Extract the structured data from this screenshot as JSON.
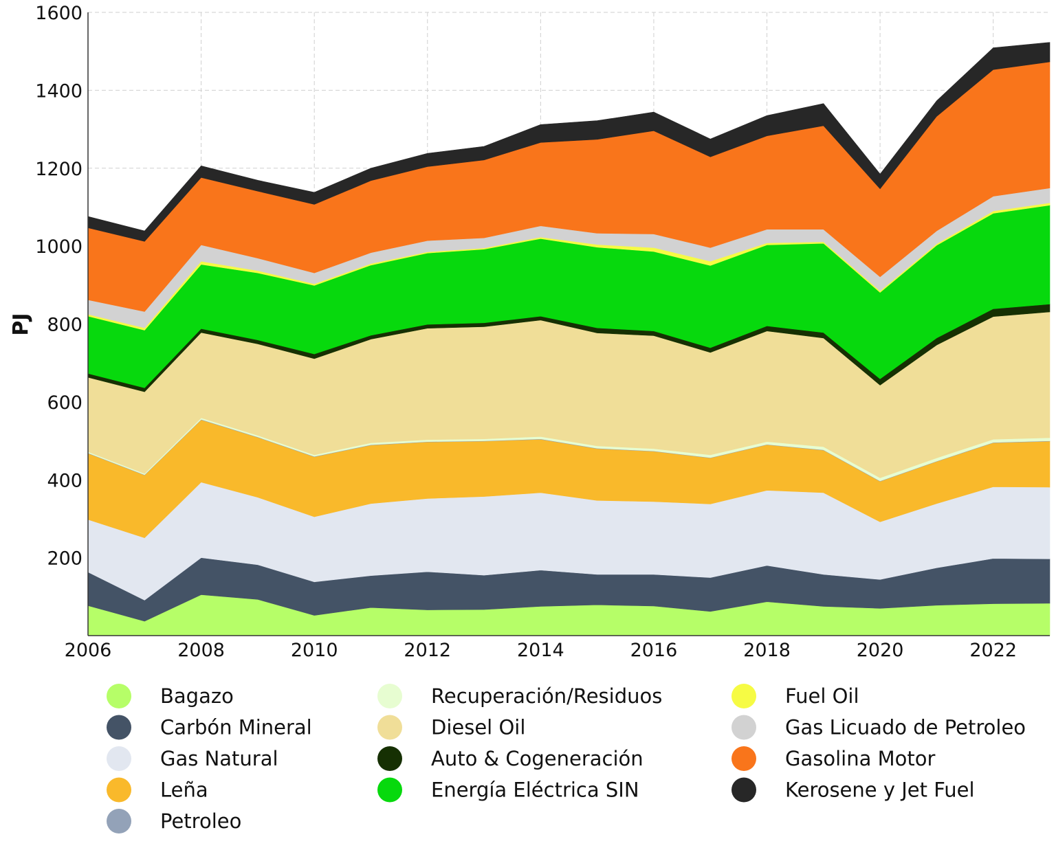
{
  "chart_data": {
    "type": "area",
    "stacked": true,
    "title": "",
    "xlabel": "",
    "ylabel": "PJ",
    "xlim": [
      2006,
      2023
    ],
    "ylim": [
      0,
      1600
    ],
    "x_ticks": [
      2006,
      2008,
      2010,
      2012,
      2014,
      2016,
      2018,
      2020,
      2022
    ],
    "y_ticks": [
      200,
      400,
      600,
      800,
      1000,
      1200,
      1400,
      1600
    ],
    "grid": true,
    "legend_position": "bottom",
    "x": [
      2006,
      2007,
      2008,
      2009,
      2010,
      2011,
      2012,
      2013,
      2014,
      2015,
      2016,
      2017,
      2018,
      2019,
      2020,
      2021,
      2022,
      2023
    ],
    "series": [
      {
        "name": "Bagazo",
        "color": "#b6fe68",
        "values": [
          77,
          37,
          105,
          93,
          52,
          72,
          66,
          67,
          75,
          79,
          76,
          62,
          87,
          75,
          70,
          78,
          82,
          83
        ]
      },
      {
        "name": "Carbón Mineral",
        "color": "#445366",
        "values": [
          86,
          54,
          95,
          89,
          86,
          82,
          98,
          88,
          93,
          78,
          81,
          87,
          93,
          82,
          74,
          96,
          116,
          114
        ]
      },
      {
        "name": "Gas Natural",
        "color": "#e2e7f0",
        "values": [
          135,
          160,
          194,
          173,
          167,
          185,
          188,
          202,
          199,
          190,
          187,
          189,
          193,
          210,
          148,
          165,
          184,
          184
        ]
      },
      {
        "name": "Leña",
        "color": "#f9b92b",
        "values": [
          170,
          161,
          160,
          154,
          154,
          150,
          145,
          142,
          137,
          133,
          129,
          118,
          117,
          109,
          104,
          108,
          113,
          118
        ]
      },
      {
        "name": "Petroleo",
        "color": "#93a2b8",
        "values": [
          1,
          1,
          1,
          1,
          1,
          1,
          1,
          1,
          1,
          1,
          1,
          1,
          1,
          1,
          1,
          1,
          1,
          1
        ]
      },
      {
        "name": "Recuperación/Residuos",
        "color": "#e7fdd1",
        "values": [
          3,
          3,
          4,
          4,
          4,
          5,
          5,
          5,
          6,
          6,
          6,
          7,
          7,
          8,
          8,
          8,
          8,
          8
        ]
      },
      {
        "name": "Diesel Oil",
        "color": "#f0de98",
        "values": [
          191,
          210,
          219,
          235,
          247,
          266,
          286,
          288,
          299,
          290,
          290,
          263,
          284,
          279,
          238,
          290,
          315,
          323
        ]
      },
      {
        "name": "Auto & Cogeneración",
        "color": "#163003",
        "values": [
          10,
          10,
          10,
          10,
          12,
          10,
          10,
          10,
          10,
          13,
          12,
          12,
          13,
          14,
          16,
          18,
          20,
          20
        ]
      },
      {
        "name": "Energía Eléctrica SIN",
        "color": "#07d90d",
        "values": [
          147,
          148,
          165,
          172,
          176,
          180,
          183,
          189,
          199,
          207,
          204,
          211,
          208,
          229,
          222,
          238,
          245,
          254
        ]
      },
      {
        "name": "Fuel Oil",
        "color": "#f6fb44",
        "values": [
          5,
          6,
          8,
          6,
          4,
          4,
          3,
          3,
          4,
          7,
          10,
          11,
          5,
          4,
          4,
          4,
          6,
          6
        ]
      },
      {
        "name": "Gas Licuado de Petroleo",
        "color": "#d2d2d2",
        "values": [
          37,
          42,
          42,
          32,
          28,
          28,
          29,
          26,
          29,
          29,
          35,
          35,
          35,
          32,
          36,
          33,
          38,
          38
        ]
      },
      {
        "name": "Gasolina Motor",
        "color": "#f9751b",
        "values": [
          185,
          180,
          173,
          172,
          176,
          185,
          190,
          200,
          214,
          241,
          265,
          233,
          240,
          266,
          226,
          294,
          325,
          324
        ]
      },
      {
        "name": "Kerosene y Jet Fuel",
        "color": "#272727",
        "values": [
          29,
          27,
          30,
          28,
          31,
          32,
          34,
          35,
          46,
          48,
          48,
          46,
          52,
          57,
          38,
          40,
          56,
          50
        ]
      }
    ]
  }
}
